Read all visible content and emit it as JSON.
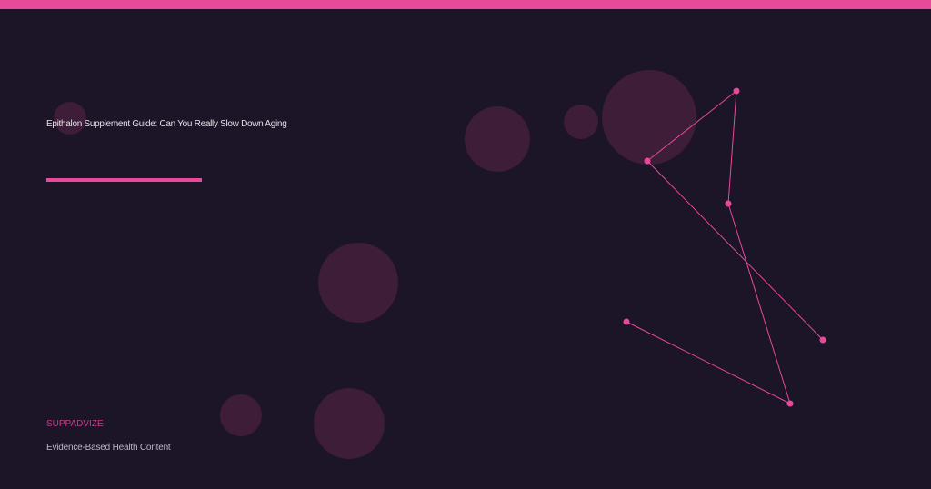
{
  "title": "Epithalon Supplement Guide: Can You Really Slow Down Aging",
  "brand": "SUPPADVIZE",
  "tagline": "Evidence-Based Health Content",
  "colors": {
    "background": "#1c1427",
    "accent": "#e8499a",
    "circle": "#3d1d37"
  }
}
